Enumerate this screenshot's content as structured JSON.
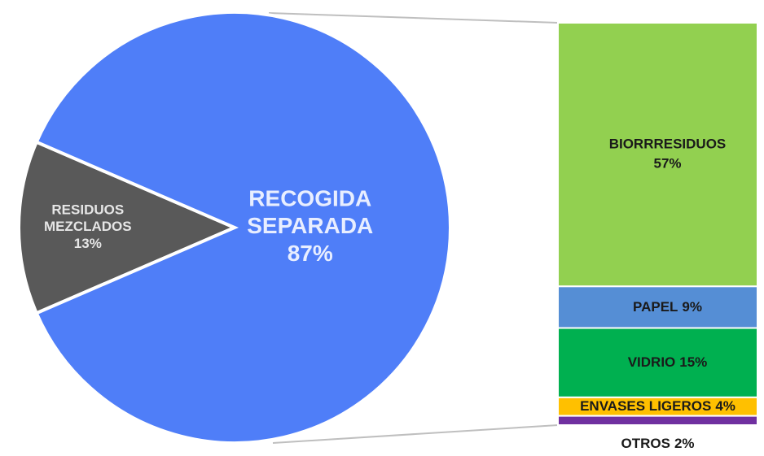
{
  "chart_data": [
    {
      "type": "pie",
      "categories": [
        "RESIDUOS MEZCLADOS",
        "RECOGIDA SEPARADA"
      ],
      "values": [
        13,
        87
      ],
      "value_labels": [
        "13%",
        "87%"
      ],
      "colors": [
        "#595959",
        "#4f7ef8"
      ]
    },
    {
      "type": "bar",
      "stacked": true,
      "categories": [
        "BIORRRESIDUOS",
        "PAPEL",
        "VIDRIO",
        "ENVASES LIGEROS",
        "OTROS"
      ],
      "values": [
        57,
        9,
        15,
        4,
        2
      ],
      "value_labels": [
        "57%",
        "9%",
        "15%",
        "4%",
        "2%"
      ],
      "colors": [
        "#92d050",
        "#558ed5",
        "#00b050",
        "#ffc000",
        "#7030a0"
      ]
    }
  ]
}
